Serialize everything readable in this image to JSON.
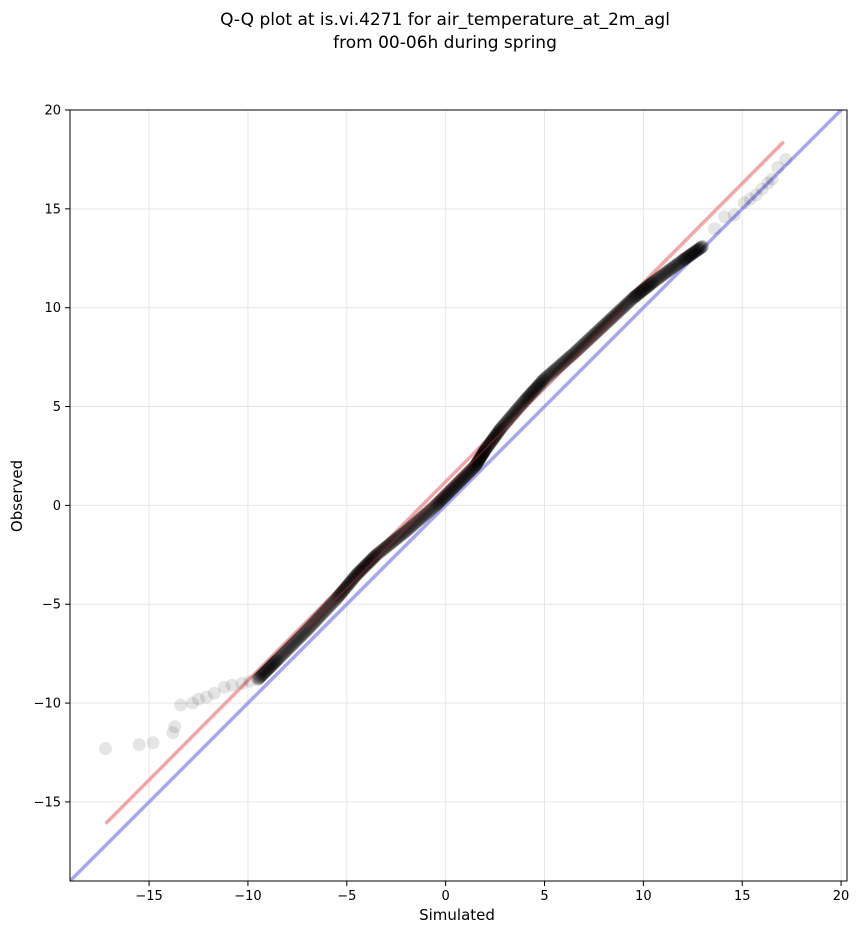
{
  "chart_data": {
    "type": "scatter",
    "title": "Q-Q plot at is.vi.4271 for air_temperature_at_2m_agl",
    "subtitle": "from 00-06h during spring",
    "xlabel": "Simulated",
    "ylabel": "Observed",
    "xlim": [
      -19,
      20.3
    ],
    "ylim": [
      -19,
      20
    ],
    "xticks": [
      -15,
      -10,
      -5,
      0,
      5,
      10,
      15,
      20
    ],
    "yticks": [
      -15,
      -10,
      -5,
      0,
      5,
      10,
      15,
      20
    ],
    "grid": true,
    "point_color": "#000000",
    "fit_line_color": "#f08080",
    "identity_line_color": "#8080f0",
    "fit_line": {
      "x": [
        -17.2,
        17.1
      ],
      "y": [
        -16.1,
        18.4
      ]
    },
    "identity_line": {
      "x": [
        -19,
        20.3
      ],
      "y": [
        -19,
        20.3
      ]
    },
    "quantile_path": {
      "x": [
        -9.5,
        -8.5,
        -7.0,
        -5.5,
        -4.5,
        -3.5,
        -2.0,
        -0.5,
        0.5,
        1.5,
        2.0,
        2.8,
        4.0,
        5.0,
        6.5,
        8.0,
        9.5,
        10.5,
        12.0,
        13.0
      ],
      "y": [
        -8.8,
        -7.8,
        -6.3,
        -4.7,
        -3.5,
        -2.5,
        -1.3,
        0.0,
        1.0,
        2.0,
        2.8,
        3.9,
        5.3,
        6.4,
        7.7,
        9.1,
        10.5,
        11.3,
        12.4,
        13.1
      ]
    },
    "tail_points": {
      "x": [
        -17.2,
        -15.5,
        -14.8,
        -13.8,
        -13.7,
        -13.4,
        -12.8,
        -12.5,
        -12.1,
        -11.7,
        -11.2,
        -10.8,
        -10.3,
        -9.9,
        13.6,
        14.1,
        14.6,
        15.1,
        15.4,
        15.7,
        16.0,
        16.3,
        16.5,
        16.8,
        17.2
      ],
      "y": [
        -12.3,
        -12.1,
        -12.0,
        -11.5,
        -11.2,
        -10.1,
        -10.0,
        -9.8,
        -9.7,
        -9.5,
        -9.2,
        -9.1,
        -9.0,
        -8.9,
        14.0,
        14.6,
        14.7,
        15.3,
        15.5,
        15.7,
        16.0,
        16.3,
        16.5,
        17.1,
        17.5
      ]
    }
  }
}
